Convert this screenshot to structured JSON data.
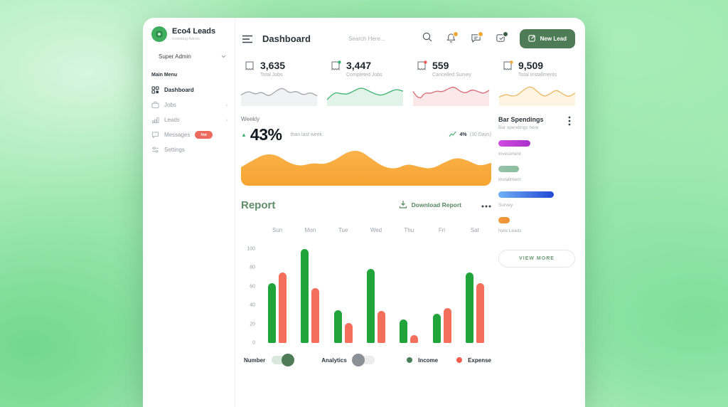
{
  "app": {
    "brand": {
      "name": "Eco4 Leads",
      "subtitle": "Investing Admin"
    },
    "user_role": "Super Admin"
  },
  "sidebar": {
    "section_label": "Main Menu",
    "items": [
      {
        "label": "Dashboard",
        "icon": "grid-icon",
        "icon_key": "grid",
        "active": true
      },
      {
        "label": "Jobs",
        "icon": "briefcase-icon",
        "icon_key": "briefcase",
        "chevron": true
      },
      {
        "label": "Leads",
        "icon": "chart-steps-icon",
        "icon_key": "steps",
        "chevron": true
      },
      {
        "label": "Messages",
        "icon": "chat-icon",
        "icon_key": "chat",
        "badge": "Hot"
      },
      {
        "label": "Settings",
        "icon": "sliders-icon",
        "icon_key": "sliders"
      }
    ]
  },
  "header": {
    "title": "Dashboard",
    "search_placeholder": "Search Here...",
    "new_lead_label": "New Lead",
    "notification_badge_color": "#f2a93b",
    "message_badge_color": "#f2a93b",
    "orders_badge_color": "#3a5f46"
  },
  "stats": {
    "cards": [
      {
        "value": "3,635",
        "label": "Total Jobs",
        "dot": "",
        "line": "#a6abaf",
        "fill": "#f1f2f3",
        "sparkline": [
          38,
          60,
          40,
          54,
          30,
          56,
          74,
          46,
          58,
          36,
          52,
          34
        ]
      },
      {
        "value": "3,447",
        "label": "Completed Jobs",
        "dot": "#35b36c",
        "line": "#45b878",
        "fill": "#e2f3e9",
        "sparkline": [
          16,
          52,
          44,
          42,
          60,
          74,
          58,
          42,
          36,
          52,
          66,
          56
        ]
      },
      {
        "value": "559",
        "label": "Cancelled Survey",
        "dot": "#ef5b50",
        "line": "#d9717d",
        "fill": "#fbe9ea",
        "sparkline": [
          55,
          12,
          50,
          45,
          58,
          52,
          68,
          78,
          56,
          46,
          64,
          56,
          44,
          60
        ]
      },
      {
        "value": "9,509",
        "label": "Total Installments",
        "dot": "#f2a93b",
        "line": "#edbb67",
        "fill": "#fdf4e2",
        "sparkline": [
          28,
          44,
          32,
          38,
          66,
          80,
          56,
          30,
          42,
          64,
          44,
          28,
          48
        ]
      }
    ]
  },
  "weekly": {
    "label": "Weekly",
    "percent": "43%",
    "compare_text": "than last week",
    "trend_value": "4%",
    "trend_period": "(30 Days)",
    "chart_data": {
      "type": "area",
      "color_top": "#f9b24a",
      "color_bottom": "#f7a431",
      "values": [
        42,
        58,
        72,
        70,
        52,
        44,
        52,
        48,
        60,
        78,
        80,
        60,
        42,
        38,
        50,
        42,
        38,
        52,
        64,
        58,
        44,
        52
      ]
    }
  },
  "bar_spendings": {
    "title": "Bar Spendings",
    "subtitle": "Bar spendings here",
    "view_more_label": "VIEW MORE",
    "chart_data": {
      "type": "bar",
      "orientation": "horizontal",
      "max": 100,
      "items": [
        {
          "label": "Investment",
          "value": 42,
          "color_start": "#d14be0",
          "color_end": "#a832c8"
        },
        {
          "label": "Installment",
          "value": 27,
          "color_start": "#96c3a8",
          "color_end": "#8abd9e"
        },
        {
          "label": "Survey",
          "value": 72,
          "color_start": "#6fb1f5",
          "color_end": "#2348d4"
        },
        {
          "label": "New Leads",
          "value": 15,
          "color_start": "#f09a3e",
          "color_end": "#ee9233"
        }
      ]
    }
  },
  "report": {
    "title": "Report",
    "download_label": "Download Report",
    "chart_data": {
      "type": "bar",
      "categories": [
        "Sun",
        "Mon",
        "Tue",
        "Wed",
        "Thu",
        "Fri",
        "Sat"
      ],
      "series": [
        {
          "name": "Income",
          "color": "#21a53a",
          "legend_color": "#4a7e58",
          "values": [
            64,
            100,
            35,
            79,
            25,
            31,
            75
          ]
        },
        {
          "name": "Expense",
          "color": "#f4705c",
          "legend_color": "#f05c4e",
          "values": [
            75,
            58,
            21,
            34,
            8,
            37,
            64
          ]
        }
      ],
      "ylim": [
        0,
        100
      ],
      "yticks": [
        0,
        20,
        40,
        60,
        80,
        100
      ],
      "grid": false,
      "legend_position": "bottom-right"
    },
    "controls": [
      {
        "label": "Number",
        "state": "on"
      },
      {
        "label": "Analytics",
        "state": "off"
      }
    ]
  }
}
